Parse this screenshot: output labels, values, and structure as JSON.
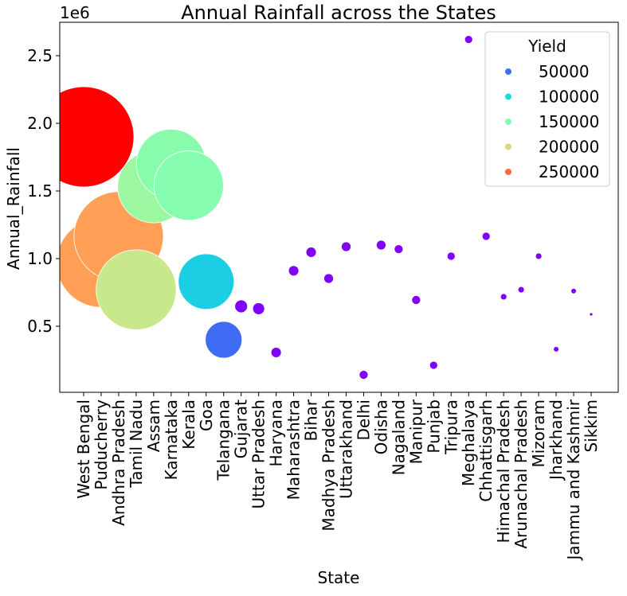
{
  "chart_data": {
    "type": "scatter",
    "title": "Annual Rainfall across the States",
    "xlabel": "State",
    "ylabel": "Annual_Rainfall",
    "y_offset_label": "1e6",
    "ylim": [
      0,
      2.72
    ],
    "y_unit_multiplier": 1000000,
    "yticks": [
      0.5,
      1.0,
      1.5,
      2.0,
      2.5
    ],
    "ytick_labels": [
      "0.5",
      "1.0",
      "1.5",
      "2.0",
      "2.5"
    ],
    "grid": false,
    "legend": {
      "title": "Yield",
      "placement": "top-right",
      "items": [
        {
          "label": "50000",
          "color": "#3a72f2"
        },
        {
          "label": "100000",
          "color": "#22d8e0"
        },
        {
          "label": "150000",
          "color": "#80fcb0"
        },
        {
          "label": "200000",
          "color": "#dcd67c"
        },
        {
          "label": "250000",
          "color": "#ff6a3a"
        }
      ]
    },
    "points": [
      {
        "state": "West Bengal",
        "rainfall": 1.9,
        "yield": 300000,
        "color": "#ff0000"
      },
      {
        "state": "Puducherry",
        "rainfall": 0.97,
        "yield": 240000,
        "color": "#ffa056"
      },
      {
        "state": "Andhra Pradesh",
        "rainfall": 1.165,
        "yield": 240000,
        "color": "#ffa056"
      },
      {
        "state": "Tamil Nadu",
        "rainfall": 0.77,
        "yield": 195000,
        "color": "#c8e88c"
      },
      {
        "state": "Assam",
        "rainfall": 1.53,
        "yield": 160000,
        "color": "#9cf8a0"
      },
      {
        "state": "Karnataka",
        "rainfall": 1.7,
        "yield": 150000,
        "color": "#88fcaa"
      },
      {
        "state": "Kerala",
        "rainfall": 1.54,
        "yield": 150000,
        "color": "#86fdb0"
      },
      {
        "state": "Goa",
        "rainfall": 0.83,
        "yield": 100000,
        "color": "#1ccee4"
      },
      {
        "state": "Telangana",
        "rainfall": 0.4,
        "yield": 50000,
        "color": "#406cf4"
      },
      {
        "state": "Gujarat",
        "rainfall": 0.647,
        "yield": 16200,
        "color": "#8000ff"
      },
      {
        "state": "Uttar Pradesh",
        "rainfall": 0.63,
        "yield": 15600,
        "color": "#8000ff"
      },
      {
        "state": "Haryana",
        "rainfall": 0.306,
        "yield": 14600,
        "color": "#8000ff"
      },
      {
        "state": "Maharashtra",
        "rainfall": 0.91,
        "yield": 14600,
        "color": "#8000ff"
      },
      {
        "state": "Bihar",
        "rainfall": 1.047,
        "yield": 14600,
        "color": "#8000ff"
      },
      {
        "state": "Madhya Pradesh",
        "rainfall": 0.853,
        "yield": 14200,
        "color": "#8000ff"
      },
      {
        "state": "Uttarakhand",
        "rainfall": 1.088,
        "yield": 14200,
        "color": "#8000ff"
      },
      {
        "state": "Delhi",
        "rainfall": 0.141,
        "yield": 13800,
        "color": "#8000ff"
      },
      {
        "state": "Odisha",
        "rainfall": 1.1,
        "yield": 14200,
        "color": "#8000ff"
      },
      {
        "state": "Nagaland",
        "rainfall": 1.07,
        "yield": 13800,
        "color": "#8000ff"
      },
      {
        "state": "Manipur",
        "rainfall": 0.694,
        "yield": 13800,
        "color": "#8000ff"
      },
      {
        "state": "Punjab",
        "rainfall": 0.212,
        "yield": 13400,
        "color": "#8000ff"
      },
      {
        "state": "Tripura",
        "rainfall": 1.018,
        "yield": 13400,
        "color": "#8000ff"
      },
      {
        "state": "Meghalaya",
        "rainfall": 2.62,
        "yield": 13400,
        "color": "#8000ff"
      },
      {
        "state": "Chhattisgarh",
        "rainfall": 1.165,
        "yield": 13400,
        "color": "#8000ff"
      },
      {
        "state": "Himachal Pradesh",
        "rainfall": 0.718,
        "yield": 12700,
        "color": "#8000ff"
      },
      {
        "state": "Arunachal Pradesh",
        "rainfall": 0.77,
        "yield": 12700,
        "color": "#8000ff"
      },
      {
        "state": "Mizoram",
        "rainfall": 1.018,
        "yield": 12700,
        "color": "#8000ff"
      },
      {
        "state": "Jharkhand",
        "rainfall": 0.33,
        "yield": 12400,
        "color": "#8000ff"
      },
      {
        "state": "Jammu and Kashmir",
        "rainfall": 0.76,
        "yield": 12400,
        "color": "#8000ff"
      },
      {
        "state": "Sikkim",
        "rainfall": 0.588,
        "yield": 11850,
        "color": "#8000ff"
      }
    ]
  }
}
